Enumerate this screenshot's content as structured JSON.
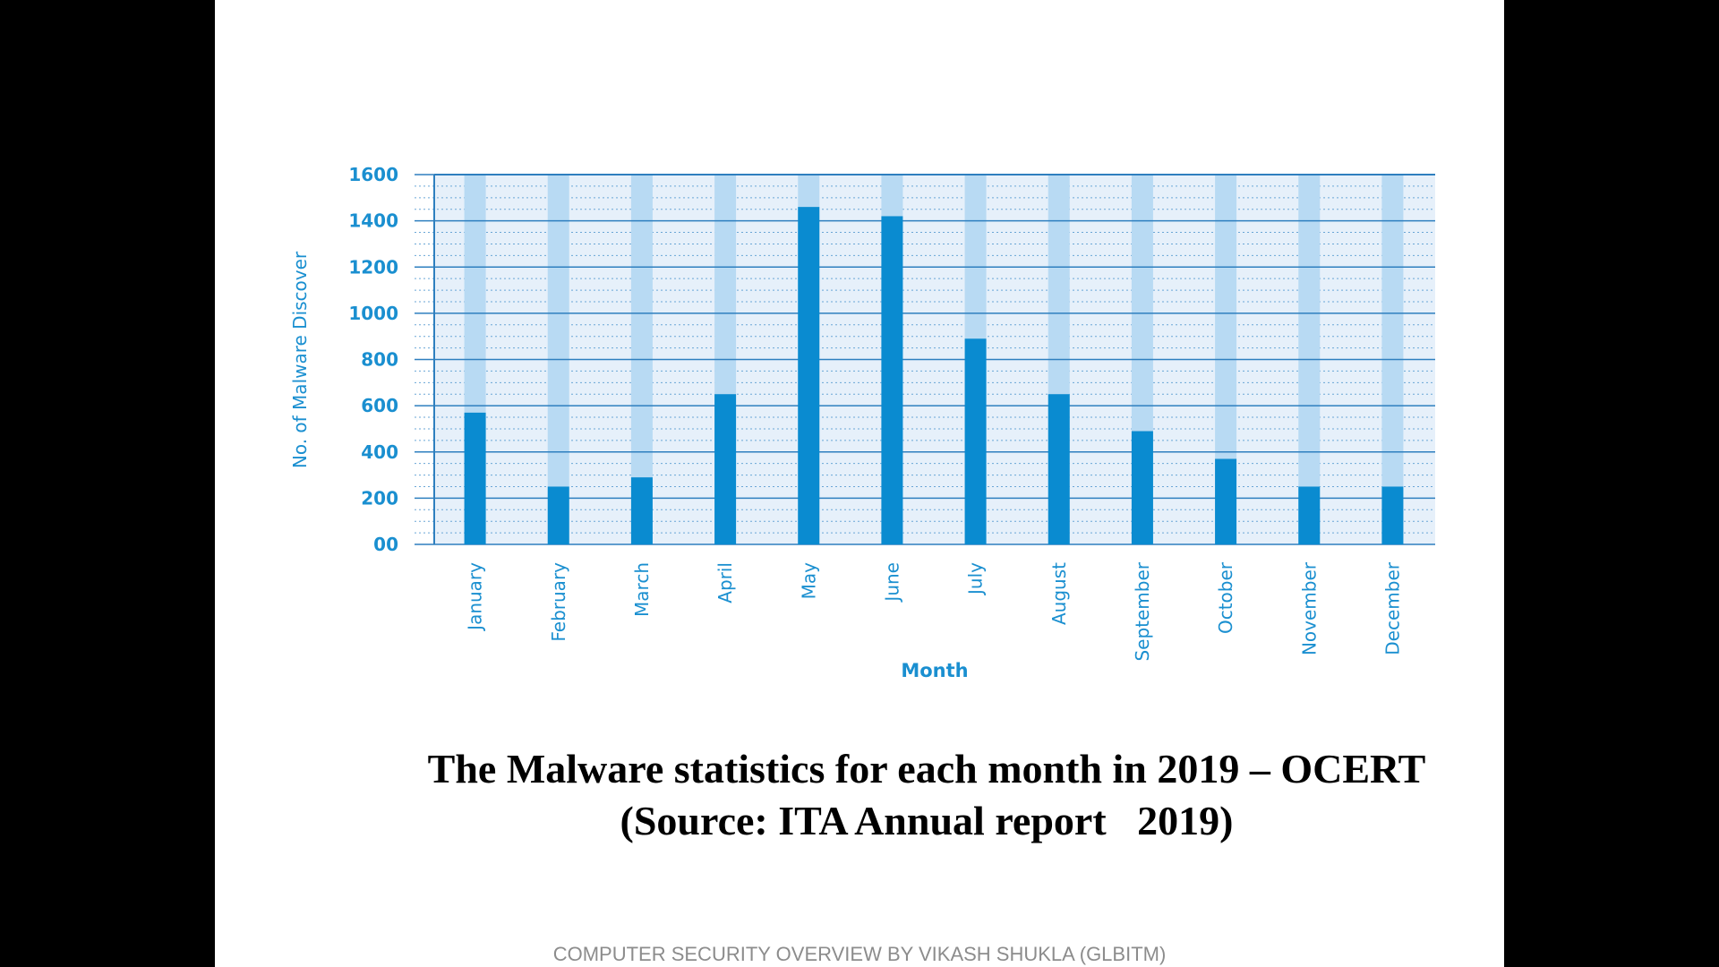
{
  "chart_data": {
    "type": "bar",
    "categories": [
      "January",
      "February",
      "March",
      "April",
      "May",
      "June",
      "July",
      "August",
      "September",
      "October",
      "November",
      "December"
    ],
    "values": [
      570,
      250,
      290,
      650,
      1460,
      1420,
      890,
      650,
      490,
      370,
      250,
      250
    ],
    "ylabel": "No. of Malware Discover",
    "xlabel": "Month",
    "ylim": [
      0,
      1600
    ],
    "yticks": [
      0,
      200,
      400,
      600,
      800,
      1000,
      1200,
      1400,
      1600
    ],
    "ytick_labels": [
      "00",
      "200",
      "400",
      "600",
      "800",
      "1000",
      "1200",
      "1400",
      "1600"
    ],
    "grid": true,
    "colors": {
      "bar": "#0a8bd0",
      "bar_track": "#b8daf3",
      "plot_bg": "#e6f0fa",
      "grid_major": "#2e7fbf",
      "grid_minor": "#6aa6d6",
      "text": "#1a8fd0"
    }
  },
  "caption": {
    "line1": "The Malware statistics for each month in 2019 – OCERT",
    "line2": "(Source: ITA Annual report   2019)"
  },
  "footer": "COMPUTER SECURITY OVERVIEW BY VIKASH SHUKLA (GLBITM)"
}
